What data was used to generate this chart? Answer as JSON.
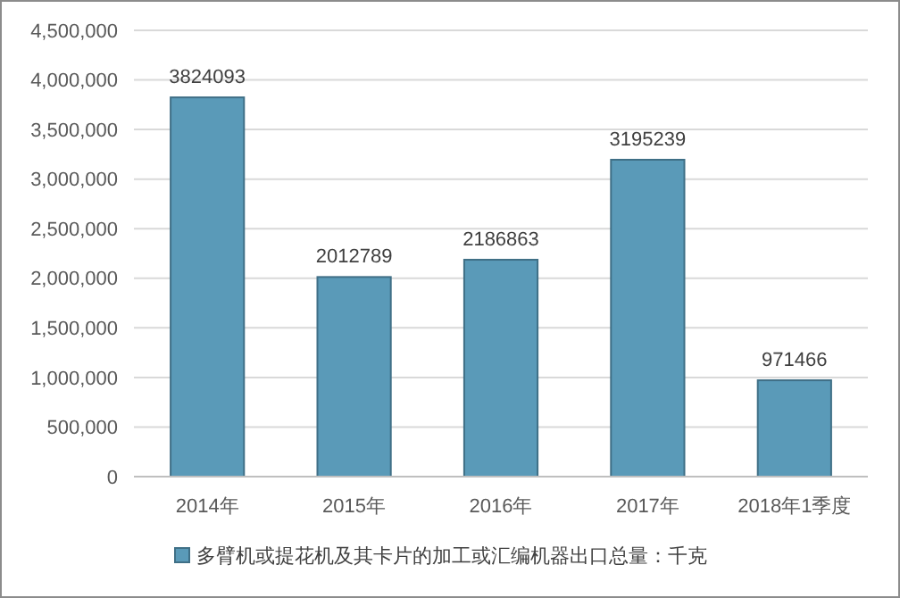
{
  "chart_data": {
    "type": "bar",
    "categories": [
      "2014年",
      "2015年",
      "2016年",
      "2017年",
      "2018年1季度"
    ],
    "series": [
      {
        "name": "多臂机或提花机及其卡片的加工或汇编机器出口总量：千克",
        "color": "#5a9ab8",
        "values": [
          3824093,
          2012789,
          2186863,
          3195239,
          971466
        ]
      }
    ],
    "ylim": [
      0,
      4500000
    ],
    "yticks": [
      {
        "value": 0,
        "label": "0"
      },
      {
        "value": 500000,
        "label": "500,000"
      },
      {
        "value": 1000000,
        "label": "1,000,000"
      },
      {
        "value": 1500000,
        "label": "1,500,000"
      },
      {
        "value": 2000000,
        "label": "2,000,000"
      },
      {
        "value": 2500000,
        "label": "2,500,000"
      },
      {
        "value": 3000000,
        "label": "3,000,000"
      },
      {
        "value": 3500000,
        "label": "3,500,000"
      },
      {
        "value": 4000000,
        "label": "4,000,000"
      },
      {
        "value": 4500000,
        "label": "4,500,000"
      }
    ],
    "grid": "y",
    "data_labels": true,
    "legend": "bottom"
  }
}
